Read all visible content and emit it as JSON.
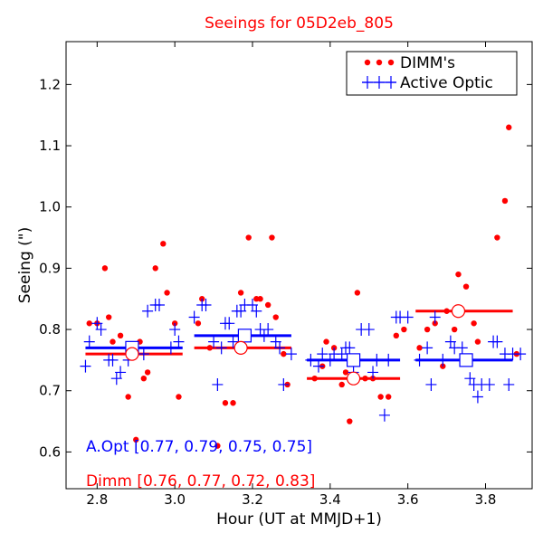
{
  "chart_data": {
    "type": "scatter",
    "title": "Seeings for 05D2eb_805",
    "xlabel": "Hour (UT at MMJD+1)",
    "ylabel": "Seeing (\")",
    "xlim": [
      2.72,
      3.92
    ],
    "ylim": [
      0.54,
      1.27
    ],
    "xticks": [
      2.8,
      3.0,
      3.2,
      3.4,
      3.6,
      3.8
    ],
    "xtick_labels": [
      "2.8",
      "3.0",
      "3.2",
      "3.4",
      "3.6",
      "3.8"
    ],
    "yticks": [
      0.6,
      0.7,
      0.8,
      0.9,
      1.0,
      1.1,
      1.2
    ],
    "ytick_labels": [
      "0.6",
      "0.7",
      "0.8",
      "0.9",
      "1.0",
      "1.1",
      "1.2"
    ],
    "grid": false,
    "legend_position": "top-right",
    "series": [
      {
        "name": "DIMM's",
        "marker": "dot",
        "color": "#ff0000",
        "points": [
          [
            2.78,
            0.81
          ],
          [
            2.8,
            0.81
          ],
          [
            2.82,
            0.9
          ],
          [
            2.83,
            0.82
          ],
          [
            2.84,
            0.78
          ],
          [
            2.86,
            0.79
          ],
          [
            2.88,
            0.69
          ],
          [
            2.9,
            0.62
          ],
          [
            2.91,
            0.78
          ],
          [
            2.92,
            0.72
          ],
          [
            2.93,
            0.73
          ],
          [
            2.95,
            0.9
          ],
          [
            2.97,
            0.94
          ],
          [
            2.98,
            0.86
          ],
          [
            3.0,
            0.81
          ],
          [
            3.01,
            0.69
          ],
          [
            3.06,
            0.81
          ],
          [
            3.07,
            0.85
          ],
          [
            3.09,
            0.77
          ],
          [
            3.11,
            0.61
          ],
          [
            3.13,
            0.68
          ],
          [
            3.15,
            0.68
          ],
          [
            3.17,
            0.86
          ],
          [
            3.19,
            0.95
          ],
          [
            3.21,
            0.85
          ],
          [
            3.22,
            0.85
          ],
          [
            3.24,
            0.84
          ],
          [
            3.25,
            0.95
          ],
          [
            3.26,
            0.82
          ],
          [
            3.28,
            0.76
          ],
          [
            3.29,
            0.71
          ],
          [
            3.36,
            0.72
          ],
          [
            3.38,
            0.74
          ],
          [
            3.39,
            0.78
          ],
          [
            3.41,
            0.77
          ],
          [
            3.43,
            0.71
          ],
          [
            3.44,
            0.73
          ],
          [
            3.45,
            0.65
          ],
          [
            3.47,
            0.86
          ],
          [
            3.49,
            0.72
          ],
          [
            3.51,
            0.72
          ],
          [
            3.53,
            0.69
          ],
          [
            3.55,
            0.69
          ],
          [
            3.57,
            0.79
          ],
          [
            3.59,
            0.8
          ],
          [
            3.63,
            0.77
          ],
          [
            3.65,
            0.8
          ],
          [
            3.67,
            0.81
          ],
          [
            3.69,
            0.74
          ],
          [
            3.7,
            0.83
          ],
          [
            3.72,
            0.8
          ],
          [
            3.73,
            0.89
          ],
          [
            3.75,
            0.87
          ],
          [
            3.77,
            0.81
          ],
          [
            3.78,
            0.78
          ],
          [
            3.83,
            0.95
          ],
          [
            3.85,
            1.01
          ],
          [
            3.86,
            1.13
          ],
          [
            3.88,
            0.76
          ]
        ]
      },
      {
        "name": "Active Optic",
        "marker": "plus",
        "color": "#0000ff",
        "points": [
          [
            2.77,
            0.74
          ],
          [
            2.78,
            0.78
          ],
          [
            2.8,
            0.81
          ],
          [
            2.81,
            0.8
          ],
          [
            2.83,
            0.75
          ],
          [
            2.84,
            0.75
          ],
          [
            2.85,
            0.72
          ],
          [
            2.86,
            0.73
          ],
          [
            2.88,
            0.75
          ],
          [
            2.9,
            0.77
          ],
          [
            2.92,
            0.76
          ],
          [
            2.93,
            0.83
          ],
          [
            2.95,
            0.84
          ],
          [
            2.96,
            0.84
          ],
          [
            2.99,
            0.77
          ],
          [
            3.0,
            0.8
          ],
          [
            3.01,
            0.78
          ],
          [
            3.05,
            0.82
          ],
          [
            3.07,
            0.84
          ],
          [
            3.08,
            0.84
          ],
          [
            3.1,
            0.78
          ],
          [
            3.11,
            0.71
          ],
          [
            3.12,
            0.77
          ],
          [
            3.13,
            0.81
          ],
          [
            3.14,
            0.81
          ],
          [
            3.15,
            0.78
          ],
          [
            3.16,
            0.83
          ],
          [
            3.17,
            0.83
          ],
          [
            3.18,
            0.84
          ],
          [
            3.2,
            0.84
          ],
          [
            3.21,
            0.83
          ],
          [
            3.22,
            0.8
          ],
          [
            3.23,
            0.79
          ],
          [
            3.24,
            0.8
          ],
          [
            3.26,
            0.78
          ],
          [
            3.27,
            0.77
          ],
          [
            3.28,
            0.71
          ],
          [
            3.3,
            0.76
          ],
          [
            3.35,
            0.75
          ],
          [
            3.37,
            0.74
          ],
          [
            3.38,
            0.76
          ],
          [
            3.4,
            0.75
          ],
          [
            3.41,
            0.76
          ],
          [
            3.43,
            0.76
          ],
          [
            3.44,
            0.77
          ],
          [
            3.45,
            0.77
          ],
          [
            3.46,
            0.73
          ],
          [
            3.48,
            0.8
          ],
          [
            3.5,
            0.8
          ],
          [
            3.51,
            0.73
          ],
          [
            3.52,
            0.75
          ],
          [
            3.54,
            0.66
          ],
          [
            3.55,
            0.75
          ],
          [
            3.57,
            0.82
          ],
          [
            3.58,
            0.82
          ],
          [
            3.6,
            0.82
          ],
          [
            3.63,
            0.75
          ],
          [
            3.65,
            0.77
          ],
          [
            3.66,
            0.71
          ],
          [
            3.67,
            0.82
          ],
          [
            3.69,
            0.75
          ],
          [
            3.71,
            0.78
          ],
          [
            3.72,
            0.77
          ],
          [
            3.74,
            0.77
          ],
          [
            3.76,
            0.72
          ],
          [
            3.77,
            0.71
          ],
          [
            3.78,
            0.69
          ],
          [
            3.79,
            0.71
          ],
          [
            3.81,
            0.71
          ],
          [
            3.82,
            0.78
          ],
          [
            3.83,
            0.78
          ],
          [
            3.85,
            0.76
          ],
          [
            3.86,
            0.71
          ],
          [
            3.87,
            0.76
          ],
          [
            3.89,
            0.76
          ]
        ]
      }
    ],
    "segments": [
      {
        "series": "Active Optic",
        "x_start": 2.77,
        "x_end": 3.02,
        "value": 0.77,
        "center_x": 2.89
      },
      {
        "series": "Active Optic",
        "x_start": 3.05,
        "x_end": 3.3,
        "value": 0.79,
        "center_x": 3.18
      },
      {
        "series": "Active Optic",
        "x_start": 3.34,
        "x_end": 3.58,
        "value": 0.75,
        "center_x": 3.46
      },
      {
        "series": "Active Optic",
        "x_start": 3.62,
        "x_end": 3.87,
        "value": 0.75,
        "center_x": 3.75
      },
      {
        "series": "DIMM's",
        "x_start": 2.77,
        "x_end": 3.02,
        "value": 0.76,
        "center_x": 2.89
      },
      {
        "series": "DIMM's",
        "x_start": 3.05,
        "x_end": 3.3,
        "value": 0.77,
        "center_x": 3.17
      },
      {
        "series": "DIMM's",
        "x_start": 3.34,
        "x_end": 3.58,
        "value": 0.72,
        "center_x": 3.46
      },
      {
        "series": "DIMM's",
        "x_start": 3.62,
        "x_end": 3.87,
        "value": 0.83,
        "center_x": 3.73
      }
    ],
    "annotations": [
      {
        "text": "A.Opt [0.77, 0.79, 0.75, 0.75]",
        "color": "#0000ff"
      },
      {
        "text": "Dimm [0.76, 0.77, 0.72, 0.83]",
        "color": "#ff0000"
      }
    ]
  }
}
